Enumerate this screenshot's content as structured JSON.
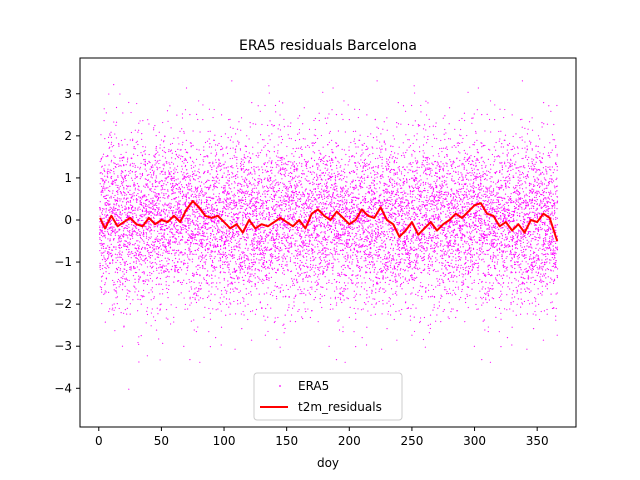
{
  "chart_data": {
    "type": "scatter",
    "title": "ERA5 residuals Barcelona",
    "xlabel": "doy",
    "ylabel": "",
    "xlim": [
      -15,
      381
    ],
    "ylim": [
      -4.92,
      3.85
    ],
    "x_ticks": [
      0,
      50,
      100,
      150,
      200,
      250,
      300,
      350
    ],
    "y_ticks": [
      -4,
      -3,
      -2,
      -1,
      0,
      1,
      2,
      3
    ],
    "grid": false,
    "legend_position": "lower-center",
    "series": [
      {
        "name": "ERA5",
        "kind": "scatter",
        "color": "#ff00ff",
        "approx_points_per_doy": 30,
        "residual_std": 1.0,
        "y_range_observed": [
          -4.5,
          3.45
        ]
      },
      {
        "name": "t2m_residuals",
        "kind": "line",
        "color": "#ff0000",
        "x": [
          1,
          5,
          10,
          15,
          20,
          25,
          30,
          35,
          40,
          45,
          50,
          55,
          60,
          65,
          70,
          75,
          80,
          85,
          90,
          95,
          100,
          105,
          110,
          115,
          120,
          125,
          130,
          135,
          140,
          145,
          150,
          155,
          160,
          165,
          170,
          175,
          180,
          185,
          190,
          195,
          200,
          205,
          210,
          215,
          220,
          225,
          230,
          235,
          240,
          245,
          250,
          255,
          260,
          265,
          270,
          275,
          280,
          285,
          290,
          295,
          300,
          305,
          310,
          315,
          320,
          325,
          330,
          335,
          340,
          345,
          350,
          355,
          360,
          366
        ],
        "y": [
          0.05,
          -0.2,
          0.1,
          -0.15,
          -0.05,
          0.05,
          -0.1,
          -0.15,
          0.05,
          -0.1,
          0.0,
          -0.05,
          0.1,
          -0.05,
          0.25,
          0.45,
          0.3,
          0.1,
          0.05,
          0.1,
          -0.05,
          -0.2,
          -0.1,
          -0.3,
          0.0,
          -0.2,
          -0.1,
          -0.15,
          -0.05,
          0.05,
          -0.05,
          -0.15,
          0.0,
          -0.2,
          0.15,
          0.25,
          0.1,
          0.0,
          0.2,
          0.05,
          -0.1,
          0.0,
          0.25,
          0.1,
          0.05,
          0.3,
          0.0,
          -0.1,
          -0.4,
          -0.25,
          -0.05,
          -0.35,
          -0.2,
          -0.05,
          -0.25,
          -0.1,
          0.0,
          0.15,
          0.05,
          0.2,
          0.35,
          0.4,
          0.15,
          0.1,
          -0.15,
          -0.05,
          -0.25,
          -0.1,
          -0.3,
          0.0,
          -0.05,
          0.15,
          0.05,
          -0.5
        ]
      }
    ]
  }
}
